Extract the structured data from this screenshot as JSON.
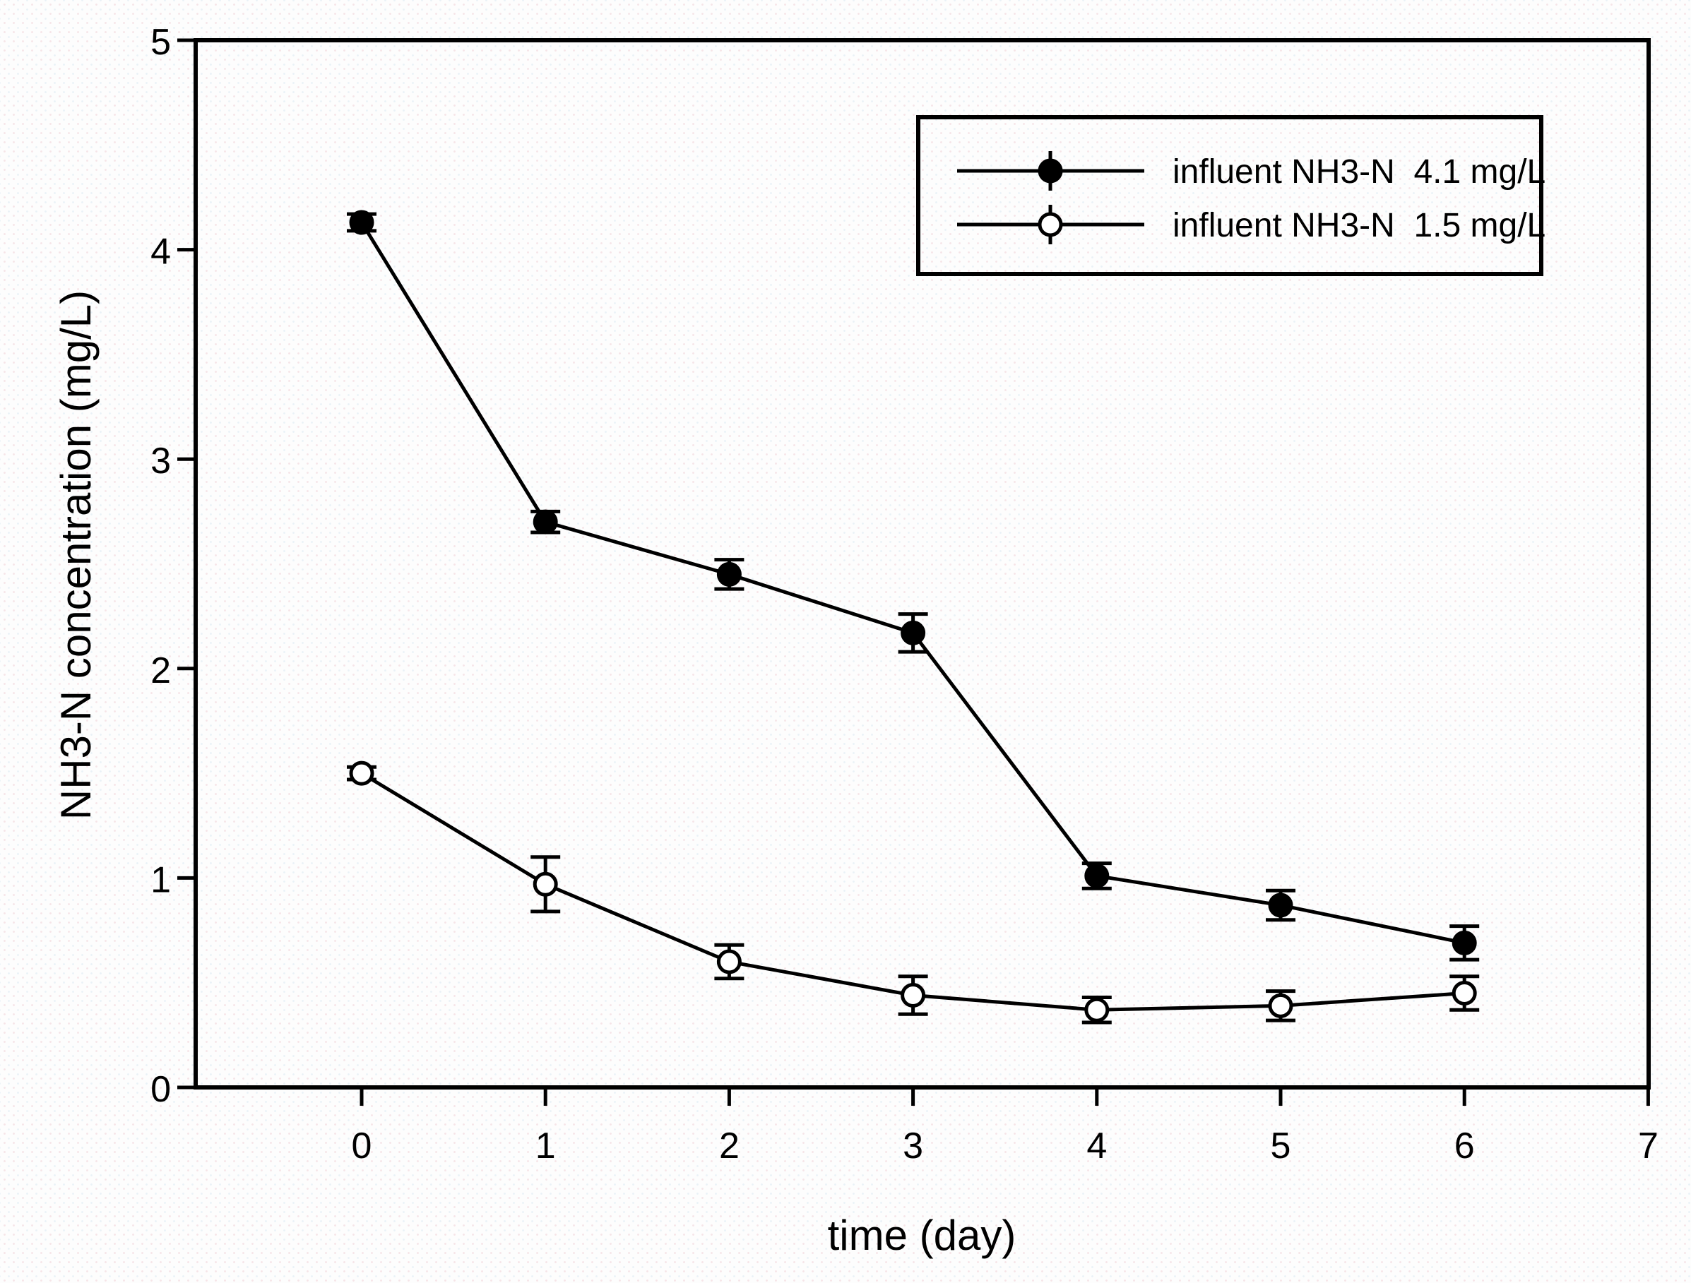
{
  "figure": {
    "background": "#fdfdfd",
    "ink_color": "#000000"
  },
  "chart_data": {
    "type": "line",
    "title": "",
    "xlabel": "time (day)",
    "ylabel": "NH3-N concentration (mg/L)",
    "xlim": [
      -0.9,
      7
    ],
    "ylim": [
      0,
      5
    ],
    "x_ticks": [
      0,
      1,
      2,
      3,
      4,
      5,
      6,
      7
    ],
    "y_ticks": [
      0,
      1,
      2,
      3,
      4,
      5
    ],
    "grid": false,
    "frame": "full-box",
    "legend_position": "top-right",
    "legend_border": true,
    "x": [
      0,
      1,
      2,
      3,
      4,
      5,
      6
    ],
    "series": [
      {
        "name": "influent NH3-N  4.1 mg/L",
        "marker": "filled-circle",
        "color": "#000000",
        "values": [
          4.13,
          2.7,
          2.45,
          2.17,
          1.01,
          0.87,
          0.69
        ],
        "errors": [
          0.04,
          0.05,
          0.07,
          0.09,
          0.06,
          0.07,
          0.08
        ]
      },
      {
        "name": "influent NH3-N  1.5 mg/L",
        "marker": "open-circle",
        "color": "#000000",
        "values": [
          1.5,
          0.97,
          0.6,
          0.44,
          0.37,
          0.39,
          0.45
        ],
        "errors": [
          0.03,
          0.13,
          0.08,
          0.09,
          0.06,
          0.07,
          0.08
        ]
      }
    ],
    "error_bars": "vertical-with-caps"
  }
}
